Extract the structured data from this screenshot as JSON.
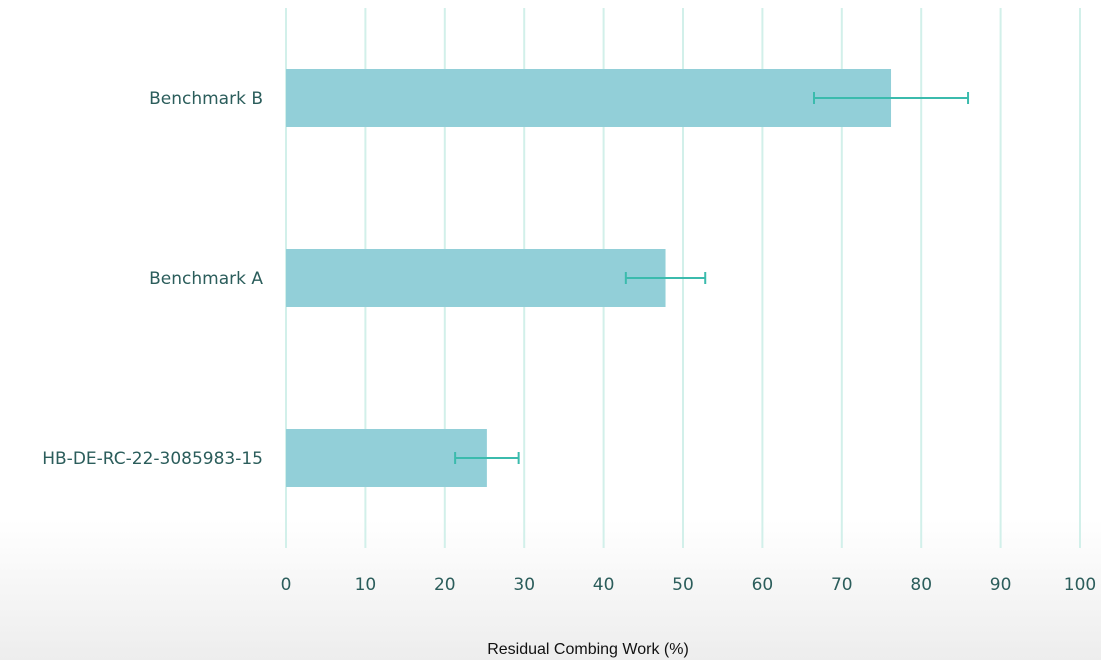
{
  "chart_data": {
    "type": "bar",
    "orientation": "horizontal",
    "categories": [
      "HB-DE-RC-22-3085983-15",
      "Benchmark A",
      "Benchmark B"
    ],
    "values": [
      25.3,
      47.8,
      76.2
    ],
    "error_bars": [
      4.0,
      5.0,
      9.7
    ],
    "title": "",
    "xlabel": "Residual Combing Work (%)",
    "ylabel": "",
    "xlim": [
      0,
      100
    ],
    "xticks": [
      0,
      10,
      20,
      30,
      40,
      50,
      60,
      70,
      80,
      90,
      100
    ],
    "grid": "vertical",
    "colors": {
      "bar": "#92cfd8",
      "error_bar": "#3bbbad",
      "grid": "#d2f0ea",
      "text": "#2b5d5b",
      "axis_title": "#111111"
    }
  }
}
